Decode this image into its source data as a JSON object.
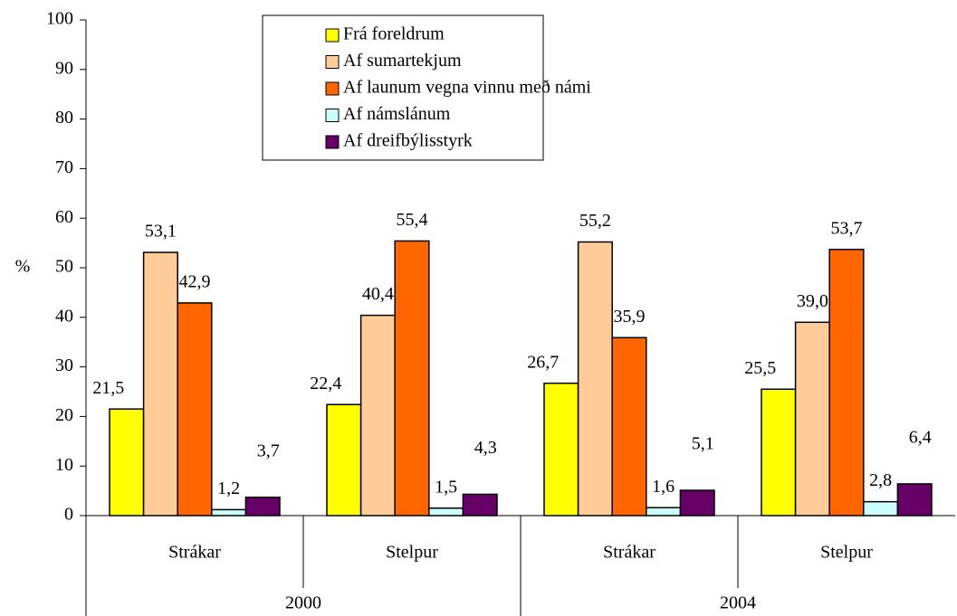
{
  "chart_data": {
    "type": "bar",
    "ylabel": "%",
    "categories": [
      "Strákar",
      "Stelpur",
      "Strákar",
      "Stelpur"
    ],
    "category_groups": [
      "2000",
      "2004"
    ],
    "ylim": [
      0,
      100
    ],
    "yticks": [
      0,
      10,
      20,
      30,
      40,
      50,
      60,
      70,
      80,
      90,
      100
    ],
    "grid": false,
    "legend": "top",
    "series": [
      {
        "name": "Frá foreldrum",
        "color": "#ffff00",
        "values": [
          21.5,
          22.4,
          26.7,
          25.5
        ],
        "value_labels": [
          "21,5",
          "22,4",
          "26,7",
          "25,5"
        ]
      },
      {
        "name": "Af sumartekjum",
        "color": "#ffcc99",
        "values": [
          53.1,
          40.4,
          55.2,
          39.0
        ],
        "value_labels": [
          "53,1",
          "40,4",
          "55,2",
          "39,0"
        ]
      },
      {
        "name": "Af launum vegna vinnu með námi",
        "color": "#ff6600",
        "values": [
          42.9,
          55.4,
          35.9,
          53.7
        ],
        "value_labels": [
          "42,9",
          "55,4",
          "35,9",
          "53,7"
        ]
      },
      {
        "name": "Af námslánum",
        "color": "#ccffff",
        "values": [
          1.2,
          1.5,
          1.6,
          2.8
        ],
        "value_labels": [
          "1,2",
          "1,5",
          "1,6",
          "2,8"
        ]
      },
      {
        "name": "Af dreifbýlisstyrk",
        "color": "#660066",
        "values": [
          3.7,
          4.3,
          5.1,
          6.4
        ],
        "value_labels": [
          "3,7",
          "4,3",
          "5,1",
          "6,4"
        ]
      }
    ]
  }
}
